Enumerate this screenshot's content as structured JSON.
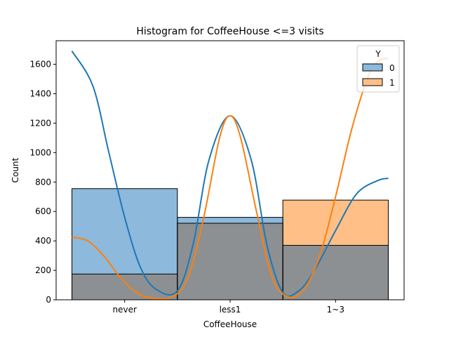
{
  "chart_data": {
    "type": "bar",
    "title": "Histogram for CoffeeHouse <=3 visits",
    "xlabel": "CoffeeHouse",
    "ylabel": "Count",
    "categories": [
      "never",
      "less1",
      "1~3"
    ],
    "ylim": [
      0,
      1760
    ],
    "yticks": [
      0,
      200,
      400,
      600,
      800,
      1000,
      1200,
      1400,
      1600
    ],
    "legend": {
      "title": "Y",
      "placement": "top-right"
    },
    "series": [
      {
        "name": "0",
        "color": "#1f77b4",
        "fill": "#8cb9dc",
        "values": [
          755,
          560,
          370
        ]
      },
      {
        "name": "1",
        "color": "#ff7f0e",
        "fill": "#ffbf86",
        "values": [
          175,
          520,
          677
        ]
      }
    ],
    "overlap_color": "#8c9092",
    "kde": [
      {
        "name": "0",
        "color": "#1f77b4",
        "x": [
          -0.5,
          -0.3,
          -0.15,
          0.0,
          0.15,
          0.3,
          0.5,
          0.65,
          0.8,
          1.0,
          1.2,
          1.35,
          1.5,
          1.65,
          1.8,
          2.0,
          2.2,
          2.4,
          2.5
        ],
        "y": [
          1690,
          1450,
          1000,
          560,
          220,
          70,
          60,
          380,
          950,
          1250,
          950,
          370,
          50,
          60,
          200,
          470,
          720,
          810,
          825
        ]
      },
      {
        "name": "1",
        "color": "#ff7f0e",
        "x": [
          -0.5,
          -0.35,
          -0.2,
          -0.05,
          0.1,
          0.25,
          0.45,
          0.6,
          0.75,
          0.9,
          1.0,
          1.1,
          1.25,
          1.4,
          1.55,
          1.7,
          1.85,
          2.0,
          2.15,
          2.3,
          2.4,
          2.5
        ],
        "y": [
          425,
          400,
          300,
          160,
          55,
          12,
          20,
          150,
          560,
          1100,
          1250,
          1100,
          600,
          150,
          20,
          70,
          300,
          700,
          1150,
          1500,
          1620,
          1640
        ]
      }
    ]
  }
}
